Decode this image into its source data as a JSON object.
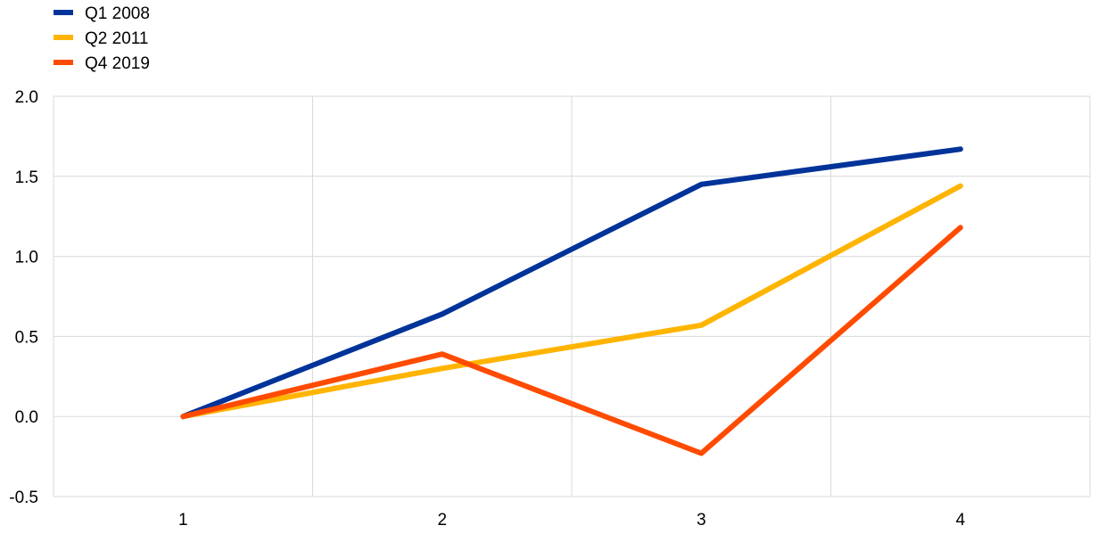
{
  "chart_data": {
    "type": "line",
    "x": [
      1,
      2,
      3,
      4
    ],
    "series": [
      {
        "name": "Q1 2008",
        "color": "#003399",
        "values": [
          0.0,
          0.64,
          1.45,
          1.67
        ]
      },
      {
        "name": "Q2 2011",
        "color": "#FFB400",
        "values": [
          0.0,
          0.3,
          0.57,
          1.44
        ]
      },
      {
        "name": "Q4 2019",
        "color": "#FF4B00",
        "values": [
          0.0,
          0.39,
          -0.23,
          1.18
        ]
      }
    ],
    "x_ticks": [
      "1",
      "2",
      "3",
      "4"
    ],
    "y_ticks": [
      "2.0",
      "1.5",
      "1.0",
      "0.5",
      "0.0",
      "-0.5"
    ],
    "ylim": [
      -0.5,
      2.0
    ],
    "xlim": [
      0.5,
      4.5
    ],
    "grid": true,
    "legend_position": "top-left"
  }
}
